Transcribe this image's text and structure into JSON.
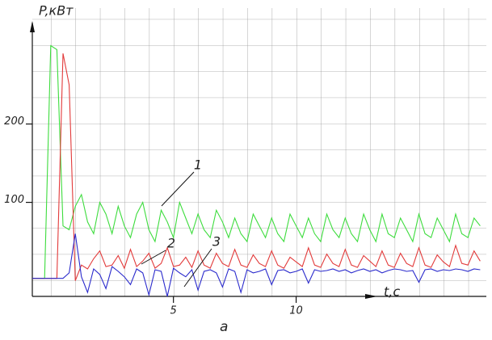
{
  "chart_data": {
    "type": "line",
    "y_label": "P,кВт",
    "x_label": "t,c",
    "caption": "а",
    "x": [
      -0.75,
      -0.5,
      -0.25,
      0,
      0.25,
      0.5,
      0.75,
      1,
      1.25,
      1.5,
      1.75,
      2,
      2.25,
      2.5,
      2.75,
      3,
      3.25,
      3.5,
      3.75,
      4,
      4.25,
      4.5,
      4.75,
      5,
      5.25,
      5.5,
      5.75,
      6,
      6.25,
      6.5,
      6.75,
      7,
      7.25,
      7.5,
      7.75,
      8,
      8.25,
      8.5,
      8.75,
      9,
      9.25,
      9.5,
      9.75,
      10,
      10.25,
      10.5,
      10.75,
      11,
      11.25,
      11.5,
      11.75,
      12,
      12.25,
      12.5,
      12.75,
      13,
      13.25,
      13.5,
      13.75,
      14,
      14.25,
      14.5,
      14.75,
      15,
      15.25,
      15.5,
      15.75,
      16,
      16.25,
      16.5,
      16.75,
      17,
      17.25,
      17.5
    ],
    "series": [
      {
        "name": "1",
        "color": "#3ddc3d",
        "values": [
          3,
          3,
          3,
          300,
          295,
          70,
          65,
          95,
          110,
          75,
          60,
          100,
          85,
          60,
          95,
          70,
          55,
          85,
          100,
          65,
          50,
          90,
          75,
          55,
          100,
          80,
          60,
          85,
          65,
          55,
          90,
          75,
          55,
          80,
          60,
          50,
          85,
          70,
          55,
          80,
          60,
          50,
          85,
          70,
          55,
          80,
          60,
          50,
          85,
          65,
          55,
          80,
          60,
          50,
          85,
          65,
          50,
          85,
          60,
          55,
          80,
          65,
          50,
          85,
          60,
          55,
          80,
          65,
          50,
          85,
          60,
          55,
          80,
          70
        ]
      },
      {
        "name": "2",
        "color": "#e23a3a",
        "values": [
          3,
          3,
          3,
          3,
          3,
          290,
          250,
          0,
          20,
          15,
          28,
          38,
          18,
          20,
          32,
          16,
          40,
          18,
          25,
          35,
          16,
          22,
          42,
          18,
          20,
          30,
          17,
          38,
          20,
          16,
          35,
          22,
          18,
          40,
          20,
          17,
          33,
          22,
          18,
          38,
          20,
          16,
          30,
          24,
          18,
          42,
          20,
          17,
          34,
          22,
          18,
          40,
          20,
          17,
          32,
          25,
          18,
          38,
          20,
          17,
          35,
          22,
          18,
          42,
          20,
          17,
          33,
          24,
          18,
          45,
          22,
          20,
          38,
          25
        ]
      },
      {
        "name": "3",
        "color": "#2a2acc",
        "values": [
          3,
          3,
          3,
          3,
          3,
          3,
          10,
          60,
          5,
          -15,
          15,
          8,
          -10,
          18,
          12,
          5,
          -5,
          15,
          10,
          -18,
          14,
          12,
          -20,
          16,
          10,
          5,
          14,
          -12,
          12,
          14,
          10,
          -8,
          15,
          12,
          -15,
          14,
          10,
          12,
          15,
          -5,
          13,
          14,
          10,
          12,
          15,
          -3,
          14,
          12,
          13,
          15,
          12,
          14,
          10,
          13,
          15,
          12,
          14,
          10,
          13,
          15,
          14,
          12,
          13,
          -2,
          14,
          15,
          12,
          14,
          13,
          15,
          14,
          12,
          15,
          14
        ]
      }
    ],
    "xlim": [
      -0.75,
      17.75
    ],
    "ylim": [
      -20,
      350
    ],
    "xticks": [
      5,
      10
    ],
    "yticks": [
      100,
      200
    ],
    "grid": true
  }
}
